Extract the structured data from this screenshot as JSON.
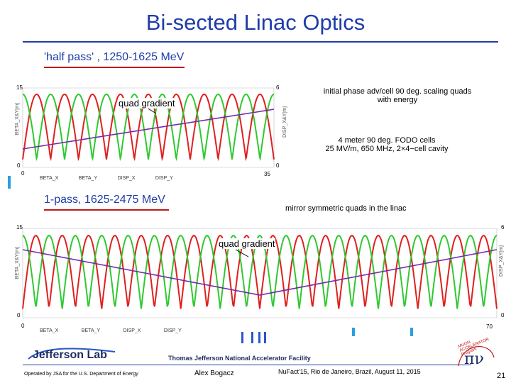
{
  "slide": {
    "title": "Bi-sected Linac Optics",
    "page_number": "21"
  },
  "plot1": {
    "heading": "'half pass' , 1250-1625 MeV",
    "annotation_quad": "quad gradient",
    "note1_line1": "initial phase adv/cell 90 deg. scaling quads",
    "note1_line2": "with energy",
    "note2_line1": "4 meter  90 deg. FODO cells",
    "note2_line2": "25 MV/m, 650 MHz, 2×4−cell cavity",
    "ylabel_left": "BETA_X&Y[m]",
    "ylabel_right": "DISP_X&Y[m]",
    "ytick_left_top": "15",
    "ytick_left_bottom": "0",
    "ytick_right_top": "6",
    "ytick_right_bottom": "0",
    "xtick_start": "0",
    "xtick_end": "35",
    "legend": [
      "BETA_X",
      "BETA_Y",
      "DISP_X",
      "DISP_Y"
    ]
  },
  "plot2": {
    "heading": "1-pass, 1625-2475 MeV",
    "annotation_mirror": "mirror symmetric quads in the linac",
    "annotation_quad": "quad gradient",
    "ylabel_left": "BETA_X&Y[m]",
    "ylabel_right": "DISP_X&Y[m]",
    "ytick_left_top": "15",
    "ytick_left_bottom": "0",
    "ytick_right_top": "6",
    "ytick_right_bottom": "0",
    "xtick_start": "0",
    "xtick_end": "70",
    "legend": [
      "BETA_X",
      "BETA_Y",
      "DISP_X",
      "DISP_Y"
    ]
  },
  "footer": {
    "lab_logo": "Jefferson Lab",
    "facility": "Thomas Jefferson National Accelerator Facility",
    "operated_by": "Operated by JSA for the U.S. Department of Energy",
    "author": "Alex Bogacz",
    "conference": "NuFact'15, Rio de Janeiro, Brazil, August 11, 2015",
    "logo_glyph": "πν",
    "logo_text": "MUON ACCELERATOR Program"
  },
  "colors": {
    "title_blue": "#1f3ca8",
    "beta_x": "#e01f1f",
    "beta_y": "#2fc92f",
    "quad_gradient": "#7a2aa8",
    "heading_underline": "#c01818"
  }
}
